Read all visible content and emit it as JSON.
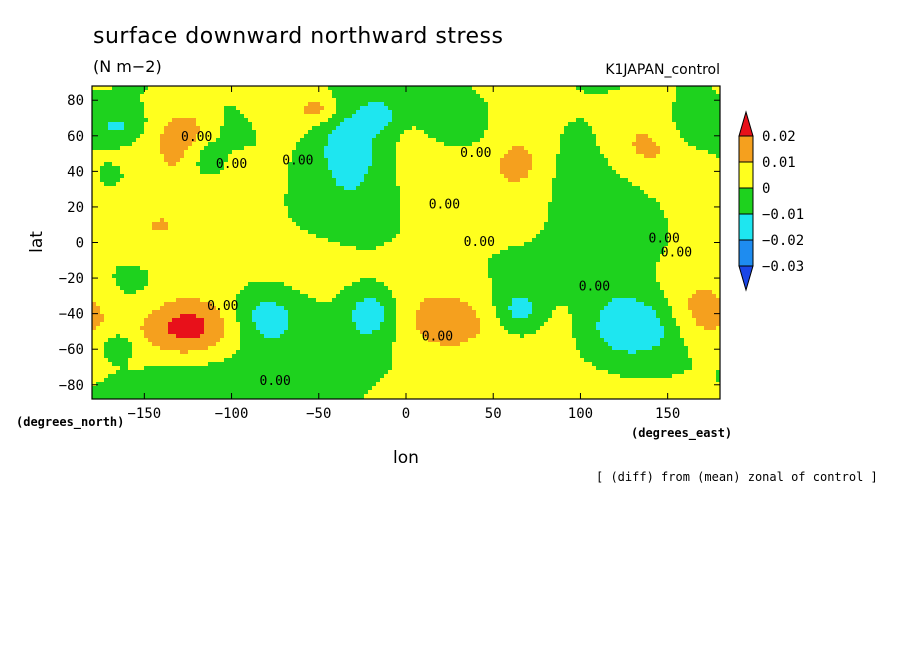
{
  "header": {
    "title": "surface downward northward stress",
    "units": "(N m−2)",
    "dataset": "K1JAPAN_control"
  },
  "footer": {
    "lat_unit": "(degrees_north)",
    "lon_unit": "(degrees_east)",
    "note": "[ (diff) from (mean) zonal of control ]"
  },
  "chart_data": {
    "type": "heatmap",
    "title": "surface downward northward stress",
    "xlabel": "lon",
    "ylabel": "lat",
    "xlim": [
      -180,
      180
    ],
    "ylim": [
      -88,
      88
    ],
    "xticks": [
      -150,
      -100,
      -50,
      0,
      50,
      100,
      150
    ],
    "yticks": [
      -80,
      -60,
      -40,
      -20,
      0,
      20,
      40,
      60,
      80
    ],
    "colorbar": {
      "levels": [
        0.02,
        0.01,
        0,
        -0.01,
        -0.02,
        -0.03
      ],
      "colors": [
        "#e8101a",
        "#f5a01e",
        "#ffff1e",
        "#1ed21e",
        "#1ee6f0",
        "#1e8cf0",
        "#1a46e6"
      ]
    },
    "contour_labels": [
      {
        "text": "0.00",
        "lon": -120,
        "lat": 57
      },
      {
        "text": "0.00",
        "lon": -100,
        "lat": 42
      },
      {
        "text": "0.00",
        "lon": -62,
        "lat": 44
      },
      {
        "text": "0.00",
        "lon": 40,
        "lat": 48
      },
      {
        "text": "0.00",
        "lon": 22,
        "lat": 19
      },
      {
        "text": "0.00",
        "lon": 42,
        "lat": -2
      },
      {
        "text": "0.00",
        "lon": 148,
        "lat": 0
      },
      {
        "text": "0.00",
        "lon": 155,
        "lat": -8
      },
      {
        "text": "0.00",
        "lon": 108,
        "lat": -27
      },
      {
        "text": "0.00",
        "lon": -105,
        "lat": -38
      },
      {
        "text": "0.00",
        "lon": 18,
        "lat": -55
      },
      {
        "text": "0.00",
        "lon": -75,
        "lat": -80
      }
    ],
    "features": [
      {
        "lon": -125,
        "lat": 62,
        "value": 0.014,
        "sx": 12,
        "sy": 10
      },
      {
        "lon": -130,
        "lat": 48,
        "value": 0.006,
        "sx": 18,
        "sy": 16
      },
      {
        "lon": -115,
        "lat": 48,
        "value": -0.012,
        "sx": 8,
        "sy": 10
      },
      {
        "lon": -165,
        "lat": 65,
        "value": -0.012,
        "sx": 10,
        "sy": 6
      },
      {
        "lon": -100,
        "lat": 65,
        "value": -0.004,
        "sx": 14,
        "sy": 10
      },
      {
        "lon": -90,
        "lat": 20,
        "value": 0.005,
        "sx": 30,
        "sy": 18
      },
      {
        "lon": -70,
        "lat": 75,
        "value": 0.006,
        "sx": 18,
        "sy": 10
      },
      {
        "lon": -50,
        "lat": 75,
        "value": 0.012,
        "sx": 7,
        "sy": 5
      },
      {
        "lon": -32,
        "lat": 55,
        "value": -0.018,
        "sx": 14,
        "sy": 16
      },
      {
        "lon": -15,
        "lat": 72,
        "value": -0.014,
        "sx": 7,
        "sy": 6
      },
      {
        "lon": 5,
        "lat": 55,
        "value": 0.003,
        "sx": 18,
        "sy": 12
      },
      {
        "lon": 18,
        "lat": 28,
        "value": 0.007,
        "sx": 22,
        "sy": 20
      },
      {
        "lon": 30,
        "lat": 65,
        "value": -0.006,
        "sx": 18,
        "sy": 12
      },
      {
        "lon": 65,
        "lat": 48,
        "value": 0.012,
        "sx": 16,
        "sy": 14
      },
      {
        "lon": 75,
        "lat": 75,
        "value": 0.004,
        "sx": 20,
        "sy": 10
      },
      {
        "lon": 70,
        "lat": 20,
        "value": 0.005,
        "sx": 14,
        "sy": 20
      },
      {
        "lon": 100,
        "lat": 45,
        "value": -0.008,
        "sx": 20,
        "sy": 20
      },
      {
        "lon": 135,
        "lat": 55,
        "value": 0.012,
        "sx": 20,
        "sy": 16
      },
      {
        "lon": 160,
        "lat": 30,
        "value": 0.004,
        "sx": 18,
        "sy": 16
      },
      {
        "lon": 165,
        "lat": 65,
        "value": -0.009,
        "sx": 12,
        "sy": 10
      },
      {
        "lon": -150,
        "lat": 20,
        "value": 0.006,
        "sx": 22,
        "sy": 22
      },
      {
        "lon": -165,
        "lat": 35,
        "value": -0.006,
        "sx": 14,
        "sy": 10
      },
      {
        "lon": -30,
        "lat": 20,
        "value": -0.007,
        "sx": 30,
        "sy": 16
      },
      {
        "lon": 120,
        "lat": 10,
        "value": -0.008,
        "sx": 22,
        "sy": 20
      },
      {
        "lon": 170,
        "lat": 5,
        "value": 0.005,
        "sx": 12,
        "sy": 10
      },
      {
        "lon": -125,
        "lat": -48,
        "value": 0.018,
        "sx": 18,
        "sy": 11
      },
      {
        "lon": -125,
        "lat": -45,
        "value": 0.006,
        "sx": 28,
        "sy": 18
      },
      {
        "lon": -80,
        "lat": -42,
        "value": -0.017,
        "sx": 14,
        "sy": 12
      },
      {
        "lon": -165,
        "lat": -58,
        "value": -0.012,
        "sx": 6,
        "sy": 5
      },
      {
        "lon": -160,
        "lat": -25,
        "value": -0.004,
        "sx": 14,
        "sy": 12
      },
      {
        "lon": -60,
        "lat": -10,
        "value": 0.005,
        "sx": 26,
        "sy": 12
      },
      {
        "lon": -20,
        "lat": -40,
        "value": -0.017,
        "sx": 10,
        "sy": 10
      },
      {
        "lon": -40,
        "lat": -65,
        "value": -0.006,
        "sx": 22,
        "sy": 12
      },
      {
        "lon": 25,
        "lat": -45,
        "value": 0.016,
        "sx": 20,
        "sy": 13
      },
      {
        "lon": 5,
        "lat": -25,
        "value": 0.004,
        "sx": 18,
        "sy": 14
      },
      {
        "lon": 65,
        "lat": -38,
        "value": -0.015,
        "sx": 10,
        "sy": 8
      },
      {
        "lon": 70,
        "lat": -15,
        "value": -0.004,
        "sx": 16,
        "sy": 14
      },
      {
        "lon": 90,
        "lat": -50,
        "value": 0.004,
        "sx": 14,
        "sy": 16
      },
      {
        "lon": 130,
        "lat": -48,
        "value": -0.02,
        "sx": 20,
        "sy": 12
      },
      {
        "lon": 120,
        "lat": -20,
        "value": -0.005,
        "sx": 18,
        "sy": 12
      },
      {
        "lon": 170,
        "lat": -40,
        "value": 0.016,
        "sx": 16,
        "sy": 13
      },
      {
        "lon": 150,
        "lat": -15,
        "value": 0.004,
        "sx": 22,
        "sy": 10
      },
      {
        "lon": -120,
        "lat": -75,
        "value": -0.006,
        "sx": 30,
        "sy": 10
      },
      {
        "lon": 60,
        "lat": -78,
        "value": 0.005,
        "sx": 40,
        "sy": 8
      },
      {
        "lon": -140,
        "lat": 5,
        "value": 0.004,
        "sx": 20,
        "sy": 8
      }
    ]
  }
}
